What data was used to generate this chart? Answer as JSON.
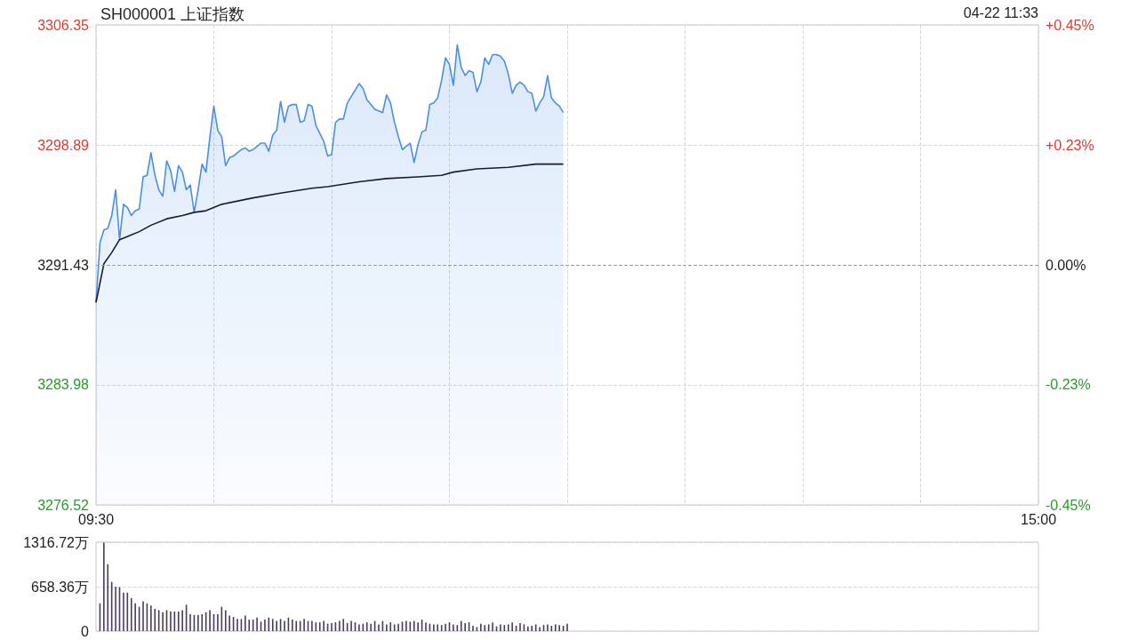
{
  "chart_data": [
    {
      "type": "area",
      "title": "SH000001 上证指数",
      "annotations": [
        "04-22 11:33"
      ],
      "categories": [
        "09:30",
        null,
        null,
        null,
        null,
        null,
        null,
        null,
        null,
        null,
        null,
        null,
        null,
        null,
        null,
        null,
        null,
        null,
        null,
        null,
        null,
        null,
        null,
        null,
        null,
        null,
        null,
        null,
        null,
        null,
        null,
        null,
        null,
        null,
        null,
        null,
        null,
        null,
        null,
        null,
        null,
        null,
        null,
        null,
        null,
        null,
        null,
        null,
        null,
        null,
        null,
        null,
        null,
        null,
        null,
        null,
        null,
        null,
        null,
        null,
        null,
        null,
        null,
        null,
        null,
        null,
        null,
        null,
        null,
        null,
        null,
        null,
        null,
        null,
        null,
        null,
        null,
        null,
        null,
        null,
        null,
        null,
        null,
        null,
        null,
        null,
        null,
        null,
        null,
        null,
        null,
        null,
        null,
        null,
        null,
        null,
        null,
        null,
        null,
        null,
        null,
        null,
        null,
        null,
        null,
        null,
        null,
        null,
        null,
        null,
        null,
        null,
        null,
        null,
        null,
        null,
        null,
        null,
        null,
        null,
        null,
        null,
        null,
        null,
        null,
        null,
        null,
        null,
        null,
        null,
        null,
        null,
        null,
        null,
        null,
        null,
        null,
        null,
        null,
        null,
        null,
        null,
        null,
        null,
        null,
        null,
        null,
        null,
        null,
        null,
        null,
        null,
        null,
        null,
        null,
        null,
        null,
        null,
        null,
        null,
        null,
        null,
        null,
        null,
        null,
        null,
        null,
        null,
        null,
        null,
        null,
        null,
        null,
        null,
        null,
        null,
        null,
        null,
        null,
        null,
        null,
        null,
        null,
        null,
        null,
        null,
        null,
        null,
        null,
        null,
        null,
        null,
        null,
        null,
        null,
        null,
        null,
        null,
        null,
        null,
        null,
        null,
        null,
        null,
        null,
        null,
        null,
        null,
        null,
        null,
        null,
        null,
        null,
        null,
        null,
        null,
        null,
        null,
        null,
        null,
        null,
        null,
        null,
        null,
        null,
        null,
        null,
        null,
        null,
        null,
        null,
        null,
        null,
        null,
        null,
        null,
        null,
        null,
        null,
        null,
        "15:00"
      ],
      "series": [
        {
          "color": "#4a8fe7",
          "values": [
            3289.1,
            3292.8,
            3293.6,
            3293.7,
            3294.5,
            3296.1,
            3293.0,
            3295.2,
            3295.0,
            3294.5,
            3294.8,
            3294.9,
            3296.9,
            3297.0,
            3298.4,
            3297.0,
            3296.1,
            3295.7,
            3297.9,
            3297.3,
            3296.0,
            3297.6,
            3297.2,
            3296.1,
            3296.4,
            3294.7,
            3296.1,
            3297.7,
            3297.2,
            3299.4,
            3301.3,
            3299.8,
            3299.4,
            3297.6,
            3298.1,
            3298.2,
            3298.4,
            3298.6,
            3298.7,
            3298.5,
            3298.6,
            3298.8,
            3299.0,
            3299.0,
            3298.5,
            3299.5,
            3299.8,
            3301.6,
            3300.3,
            3301.3,
            3301.4,
            3301.4,
            3300.3,
            3300.4,
            3301.4,
            3301.3,
            3300.1,
            3299.6,
            3299.1,
            3298.2,
            3298.3,
            3300.3,
            3300.5,
            3300.5,
            3301.5,
            3301.9,
            3302.3,
            3302.7,
            3302.4,
            3301.7,
            3301.4,
            3301.1,
            3301.0,
            3300.9,
            3302.0,
            3301.5,
            3300.3,
            3299.4,
            3298.6,
            3298.8,
            3299.0,
            3297.8,
            3298.9,
            3299.7,
            3299.8,
            3301.4,
            3301.5,
            3301.8,
            3302.9,
            3304.3,
            3303.9,
            3302.6,
            3305.1,
            3303.7,
            3303.2,
            3303.5,
            3303.4,
            3302.2,
            3302.8,
            3304.3,
            3303.9,
            3304.5,
            3304.5,
            3304.4,
            3304.1,
            3303.3,
            3302.1,
            3302.6,
            3302.8,
            3302.6,
            3302.2,
            3302.1,
            3301.0,
            3301.5,
            3301.9,
            3303.2,
            3301.8,
            3301.5,
            3301.3,
            3300.9,
            null,
            null,
            null,
            null,
            null,
            null,
            null,
            null,
            null,
            null,
            null,
            null,
            null,
            null,
            null,
            null,
            null,
            null,
            null,
            null,
            null,
            null,
            null,
            null,
            null,
            null,
            null,
            null,
            null,
            null,
            null,
            null,
            null,
            null,
            null,
            null,
            null,
            null,
            null,
            null,
            null,
            null,
            null,
            null,
            null,
            null,
            null,
            null,
            null,
            null,
            null,
            null,
            null,
            null,
            null,
            null,
            null,
            null,
            null,
            null,
            null,
            null,
            null,
            null,
            null,
            null,
            null,
            null,
            null,
            null,
            null,
            null,
            null,
            null,
            null,
            null,
            null,
            null,
            null,
            null,
            null,
            null,
            null,
            null,
            null,
            null,
            null,
            null,
            null,
            null,
            null,
            null,
            null,
            null,
            null,
            null,
            null,
            null,
            null,
            null,
            null,
            null,
            null,
            null,
            null,
            null,
            null,
            null,
            null,
            null,
            null,
            null,
            null,
            null,
            null,
            null,
            null,
            null,
            null,
            null,
            null
          ]
        },
        {
          "type": "line",
          "color": "#1c1c2c",
          "values": [
            3289.1,
            null,
            3291.5,
            null,
            3292.2,
            null,
            3293.0,
            null,
            null,
            3293.3,
            null,
            3293.5,
            null,
            null,
            3293.9,
            null,
            null,
            null,
            3294.3,
            null,
            null,
            null,
            3294.5,
            null,
            null,
            3294.7,
            null,
            null,
            3294.8,
            null,
            null,
            null,
            3295.2,
            null,
            null,
            null,
            null,
            null,
            null,
            null,
            3295.6,
            null,
            null,
            null,
            null,
            null,
            null,
            3295.9,
            null,
            null,
            null,
            null,
            null,
            null,
            null,
            3296.2,
            null,
            null,
            null,
            3296.3,
            null,
            null,
            null,
            null,
            null,
            null,
            null,
            3296.6,
            null,
            null,
            null,
            null,
            null,
            null,
            3296.8,
            null,
            null,
            null,
            null,
            null,
            null,
            null,
            3296.9,
            null,
            null,
            null,
            null,
            null,
            3297.0,
            null,
            null,
            3297.2,
            null,
            null,
            null,
            null,
            null,
            3297.4,
            null,
            null,
            null,
            null,
            null,
            null,
            null,
            3297.5,
            null,
            null,
            null,
            null,
            null,
            null,
            3297.7,
            null,
            null,
            null,
            null,
            null,
            null,
            3297.7,
            null,
            null,
            null,
            null,
            null,
            null,
            null,
            null,
            null,
            null,
            null,
            null,
            null,
            null,
            null,
            null,
            null,
            null,
            null,
            null,
            null,
            null,
            null,
            null,
            null,
            null,
            null,
            null,
            null,
            null,
            null,
            null,
            null,
            null,
            null,
            null,
            null,
            null,
            null,
            null,
            null,
            null,
            null,
            null,
            null,
            null,
            null,
            null,
            null,
            null,
            null,
            null,
            null,
            null,
            null,
            null,
            null,
            null,
            null,
            null,
            null,
            null,
            null,
            null,
            null,
            null,
            null,
            null,
            null,
            null,
            null,
            null,
            null,
            null,
            null,
            null,
            null,
            null,
            null,
            null,
            null,
            null,
            null,
            null,
            null,
            null,
            null,
            null,
            null,
            null,
            null,
            null,
            null,
            null,
            null,
            null,
            null,
            null,
            null,
            null,
            null,
            null,
            null,
            null,
            null,
            null,
            null,
            null,
            null,
            null,
            null,
            null,
            null,
            null,
            null,
            null,
            null,
            null,
            null,
            null,
            null
          ]
        }
      ],
      "ylim": [
        3276.52,
        3306.35
      ],
      "yticks": [
        3276.52,
        3283.98,
        3291.43,
        3298.89,
        3306.35
      ],
      "y2lim": [
        -0.4533,
        0.4533
      ],
      "y2ticks": [
        {
          "value": -0.4533,
          "label": "-0.45%"
        },
        {
          "value": -0.2266,
          "label": "-0.23%"
        },
        {
          "value": 0,
          "label": "0.00%"
        },
        {
          "value": 0.2266,
          "label": "+0.23%"
        },
        {
          "value": 0.4533,
          "label": "+0.45%"
        }
      ],
      "ref_lines": [
        {
          "axis": "y",
          "value": 3291.43,
          "color": "#9a9a9a",
          "line_style": "dashed"
        }
      ],
      "grid": true
    },
    {
      "type": "bar",
      "color": "#4a3b5c",
      "categories": [
        null,
        null,
        null,
        null,
        null,
        null,
        null,
        null,
        null,
        null,
        null,
        null,
        null,
        null,
        null,
        null,
        null,
        null,
        null,
        null,
        null,
        null,
        null,
        null,
        null,
        null,
        null,
        null,
        null,
        null,
        null,
        null,
        null,
        null,
        null,
        null,
        null,
        null,
        null,
        null,
        null,
        null,
        null,
        null,
        null,
        null,
        null,
        null,
        null,
        null,
        null,
        null,
        null,
        null,
        null,
        null,
        null,
        null,
        null,
        null,
        null,
        null,
        null,
        null,
        null,
        null,
        null,
        null,
        null,
        null,
        null,
        null,
        null,
        null,
        null,
        null,
        null,
        null,
        null,
        null,
        null,
        null,
        null,
        null,
        null,
        null,
        null,
        null,
        null,
        null,
        null,
        null,
        null,
        null,
        null,
        null,
        null,
        null,
        null,
        null,
        null,
        null,
        null,
        null,
        null,
        null,
        null,
        null,
        null,
        null,
        null,
        null,
        null,
        null,
        null,
        null,
        null,
        null,
        null,
        null,
        null,
        null,
        null,
        null,
        null,
        null,
        null,
        null,
        null,
        null,
        null,
        null,
        null,
        null,
        null,
        null,
        null,
        null,
        null,
        null,
        null,
        null,
        null,
        null,
        null,
        null,
        null,
        null,
        null,
        null,
        null,
        null,
        null,
        null,
        null,
        null,
        null,
        null,
        null,
        null,
        null,
        null,
        null,
        null,
        null,
        null,
        null,
        null,
        null,
        null,
        null,
        null,
        null,
        null,
        null,
        null,
        null,
        null,
        null,
        null,
        null,
        null,
        null,
        null,
        null,
        null,
        null,
        null,
        null,
        null,
        null,
        null,
        null,
        null,
        null,
        null,
        null,
        null,
        null,
        null,
        null,
        null,
        null,
        null,
        null,
        null,
        null,
        null,
        null,
        null,
        null,
        null,
        null,
        null,
        null,
        null,
        null,
        null,
        null,
        null,
        null,
        null,
        null,
        null,
        null,
        null,
        null,
        null,
        null,
        null,
        null,
        null,
        null,
        null,
        null,
        null,
        null,
        null,
        null,
        null,
        null
      ],
      "values": [
        null,
        410,
        1310,
        990,
        730,
        660,
        650,
        570,
        570,
        490,
        410,
        360,
        440,
        410,
        380,
        330,
        310,
        280,
        310,
        290,
        290,
        290,
        310,
        390,
        250,
        240,
        240,
        250,
        280,
        310,
        250,
        250,
        360,
        310,
        230,
        210,
        180,
        180,
        230,
        170,
        170,
        200,
        140,
        170,
        200,
        180,
        150,
        180,
        150,
        200,
        170,
        150,
        150,
        180,
        150,
        150,
        130,
        130,
        150,
        110,
        120,
        130,
        150,
        180,
        120,
        150,
        130,
        100,
        110,
        130,
        110,
        150,
        100,
        150,
        100,
        130,
        100,
        110,
        140,
        150,
        140,
        150,
        130,
        170,
        130,
        110,
        100,
        100,
        90,
        110,
        130,
        100,
        90,
        150,
        120,
        130,
        80,
        60,
        110,
        90,
        100,
        130,
        70,
        100,
        90,
        100,
        130,
        80,
        120,
        100,
        70,
        80,
        100,
        60,
        90,
        100,
        80,
        100,
        90,
        80,
        110,
        null,
        null,
        null,
        null,
        null,
        null,
        null,
        null,
        null,
        null,
        null,
        null,
        null,
        null,
        null,
        null,
        null,
        null,
        null,
        null,
        null,
        null,
        null,
        null,
        null,
        null,
        null,
        null,
        null,
        null,
        null,
        null,
        null,
        null,
        null,
        null,
        null,
        null,
        null,
        null,
        null,
        null,
        null,
        null,
        null,
        null,
        null,
        null,
        null,
        null,
        null,
        null,
        null,
        null,
        null,
        null,
        null,
        null,
        null,
        null,
        null,
        null,
        null,
        null,
        null,
        null,
        null,
        null,
        null,
        null,
        null,
        null,
        null,
        null,
        null,
        null,
        null,
        null,
        null,
        null,
        null,
        null,
        null,
        null,
        null,
        null,
        null,
        null,
        null,
        null,
        null,
        null,
        null,
        null,
        null,
        null,
        null,
        null,
        null,
        null,
        null,
        null,
        null,
        null,
        null,
        null,
        null,
        null,
        null,
        null,
        null,
        null,
        null,
        null,
        null,
        null,
        null,
        null,
        null,
        null
      ],
      "ylim": [
        0,
        1316.72
      ],
      "yticks": [
        0,
        {
          "value": 658.36,
          "label": "658.36万"
        },
        {
          "value": 1316.72,
          "label": "1316.72万"
        }
      ],
      "grid": "y",
      "tick_labels": "y"
    }
  ]
}
